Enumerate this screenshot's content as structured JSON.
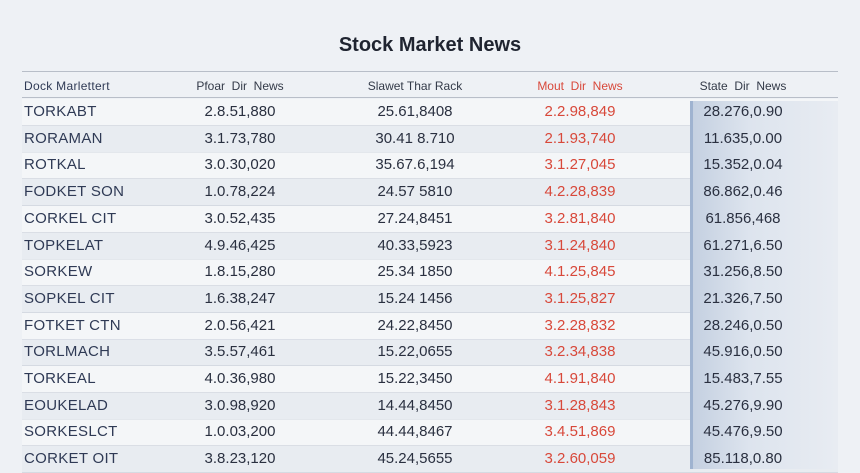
{
  "header": {
    "title": "Stock Market News"
  },
  "table": {
    "columns": [
      "Dock Marlettert",
      "Pfoar  Dir  News",
      "Slawet Thar Rack",
      "Mout  Dir  News",
      "State  Dir  News"
    ],
    "rows": [
      [
        "TORKABT",
        "2.8.51,880",
        "25.61,8408",
        "2.2.98,849",
        "28.276,0.90"
      ],
      [
        "RORAMAN",
        "3.1.73,780",
        "30.41 8.710",
        "2.1.93,740",
        "11.635,0.00"
      ],
      [
        "ROTKAL",
        "3.0.30,020",
        "35.67.6,194",
        "3.1.27,045",
        "15.352,0.04"
      ],
      [
        "FODKET SON",
        "1.0.78,224",
        "24.57 5810",
        "4.2.28,839",
        "86.862,0.46"
      ],
      [
        "CORKEL CIT",
        "3.0.52,435",
        "27.24,8451",
        "3.2.81,840",
        "61.856,468"
      ],
      [
        "TOPKELAT",
        "4.9.46,425",
        "40.33,5923",
        "3.1.24,840",
        "61.271,6.50"
      ],
      [
        "SORKEW",
        "1.8.15,280",
        "25.34 1850",
        "4.1.25,845",
        "31.256,8.50"
      ],
      [
        "SOPKEL CIT",
        "1.6.38,247",
        "15.24 1456",
        "3.1.25,827",
        "21.326,7.50"
      ],
      [
        "FOTKET CTN",
        "2.0.56,421",
        "24.22,8450",
        "3.2.28,832",
        "28.246,0.50"
      ],
      [
        "TORLMACH",
        "3.5.57,461",
        "15.22,0655",
        "3.2.34,838",
        "45.916,0.50"
      ],
      [
        "TORKEAL",
        "4.0.36,980",
        "15.22,3450",
        "4.1.91,840",
        "15.483,7.55"
      ],
      [
        "EOUKELAD",
        "3.0.98,920",
        "14.44,8450",
        "3.1.28,843",
        "45.276,9.90"
      ],
      [
        "SORKESLCT",
        "1.0.03,200",
        "44.44,8467",
        "3.4.51,869",
        "45.476,9.50"
      ],
      [
        "CORKET OIT",
        "3.8.23,120",
        "45.24,5655",
        "3.2.60,059",
        "85.118,0.80"
      ]
    ]
  }
}
